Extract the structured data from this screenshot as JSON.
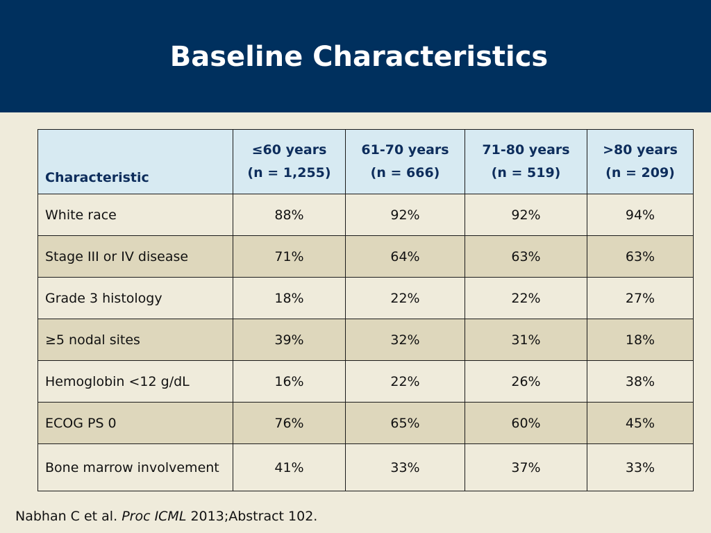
{
  "slide": {
    "title": "Baseline Characteristics",
    "colors": {
      "header_band": "#00305E",
      "background": "#EFEBDB",
      "table_header_bg": "#D7EAF2",
      "table_header_text": "#0D2D5C",
      "row_alt_bg": "#DED7BC"
    }
  },
  "table": {
    "columns": [
      {
        "line1": "",
        "line2": "Characteristic"
      },
      {
        "line1": "≤60 years",
        "line2": "(n = 1,255)"
      },
      {
        "line1": "61-70 years",
        "line2": "(n = 666)"
      },
      {
        "line1": "71-80 years",
        "line2": "(n = 519)"
      },
      {
        "line1": ">80 years",
        "line2": "(n = 209)"
      }
    ],
    "rows": [
      {
        "label": "White race",
        "values": [
          "88%",
          "92%",
          "92%",
          "94%"
        ]
      },
      {
        "label": "Stage III or IV disease",
        "values": [
          "71%",
          "64%",
          "63%",
          "63%"
        ]
      },
      {
        "label": "Grade 3 histology",
        "values": [
          "18%",
          "22%",
          "22%",
          "27%"
        ]
      },
      {
        "label": "≥5 nodal sites",
        "values": [
          "39%",
          "32%",
          "31%",
          "18%"
        ]
      },
      {
        "label": "Hemoglobin <12 g/dL",
        "values": [
          "16%",
          "22%",
          "26%",
          "38%"
        ]
      },
      {
        "label": "ECOG PS 0",
        "values": [
          "76%",
          "65%",
          "60%",
          "45%"
        ]
      },
      {
        "label": "Bone marrow involvement",
        "values": [
          "41%",
          "33%",
          "37%",
          "33%"
        ]
      }
    ]
  },
  "citation": {
    "authors": "Nabhan C et al.",
    "journal": "Proc ICML",
    "details": "2013;Abstract 102."
  }
}
